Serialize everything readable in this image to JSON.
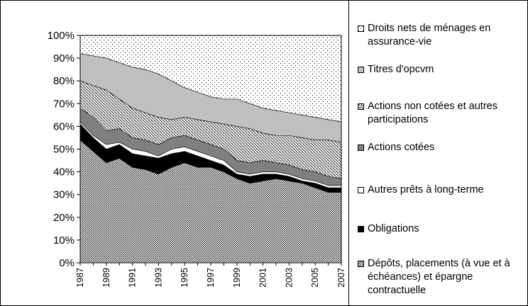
{
  "chart_data": {
    "type": "stacked_area_percent",
    "x": [
      1987,
      1988,
      1989,
      1990,
      1991,
      1992,
      1993,
      1994,
      1995,
      1996,
      1997,
      1998,
      1999,
      2000,
      2001,
      2002,
      2003,
      2004,
      2005,
      2006,
      2007
    ],
    "xlim": [
      1987,
      2007
    ],
    "xticks": [
      1987,
      1989,
      1991,
      1993,
      1995,
      1997,
      1999,
      2001,
      2003,
      2005,
      2007
    ],
    "ylim": [
      0,
      100
    ],
    "yticks": [
      {
        "value": 0,
        "label": "0%"
      },
      {
        "value": 10,
        "label": "10%"
      },
      {
        "value": 20,
        "label": "20%"
      },
      {
        "value": 30,
        "label": "30%"
      },
      {
        "value": 40,
        "label": "40%"
      },
      {
        "value": 50,
        "label": "50%"
      },
      {
        "value": 60,
        "label": "60%"
      },
      {
        "value": 70,
        "label": "70%"
      },
      {
        "value": 80,
        "label": "80%"
      },
      {
        "value": 90,
        "label": "90%"
      },
      {
        "value": 100,
        "label": "100%"
      }
    ],
    "legend": "right",
    "series": [
      {
        "name": "Dépôts, placements (à vue et à échéances) et épargne contractuelle",
        "color": "#000000",
        "pattern": "hatch-ne",
        "values": [
          54,
          49,
          44,
          46,
          42,
          41,
          39,
          42,
          44,
          42,
          42,
          40,
          37,
          35,
          36,
          37,
          36,
          35,
          33,
          31,
          31
        ]
      },
      {
        "name": "Obligations",
        "color": "#000000",
        "pattern": "solid",
        "values": [
          7,
          6,
          6,
          6,
          6,
          6,
          7,
          6,
          5,
          5,
          3,
          3,
          2,
          3,
          3,
          2,
          2,
          1,
          2,
          2,
          2
        ]
      },
      {
        "name": "Autres prêts à long-terme",
        "color": "#ffffff",
        "pattern": "solid",
        "values": [
          1,
          1,
          2,
          1,
          2,
          2,
          1,
          2,
          2,
          2,
          2,
          2,
          1,
          1,
          1,
          1,
          1,
          1,
          1,
          1,
          1
        ]
      },
      {
        "name": "Actions cotées",
        "color": "#808080",
        "pattern": "solid",
        "values": [
          6,
          8,
          6,
          6,
          5,
          5,
          5,
          5,
          5,
          5,
          5,
          5,
          5,
          5,
          5,
          4,
          4,
          4,
          4,
          4,
          3
        ]
      },
      {
        "name": "Actions non cotées et autres participations",
        "color": "#000000",
        "pattern": "hatch-nw",
        "values": [
          12,
          14,
          18,
          13,
          13,
          12,
          12,
          8,
          8,
          9,
          10,
          11,
          15,
          15,
          12,
          12,
          13,
          14,
          14,
          16,
          16
        ]
      },
      {
        "name": "Titres d'opcvm",
        "color": "#c0c0c0",
        "pattern": "solid",
        "values": [
          12,
          13,
          14,
          16,
          18,
          19,
          19,
          17,
          13,
          12,
          11,
          11,
          12,
          11,
          11,
          11,
          10,
          10,
          10,
          9,
          9
        ]
      },
      {
        "name": "Droits nets de ménages en assurance-vie",
        "color": "#000000",
        "pattern": "dots",
        "values": [
          8,
          9,
          10,
          12,
          14,
          15,
          17,
          20,
          23,
          25,
          27,
          28,
          28,
          30,
          32,
          33,
          34,
          35,
          36,
          37,
          38
        ]
      }
    ]
  }
}
